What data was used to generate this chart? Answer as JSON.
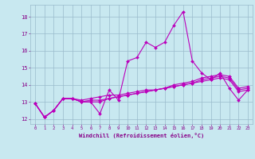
{
  "x": [
    0,
    1,
    2,
    3,
    4,
    5,
    6,
    7,
    8,
    9,
    10,
    11,
    12,
    13,
    14,
    15,
    16,
    17,
    18,
    19,
    20,
    21,
    22,
    23
  ],
  "line1": [
    12.9,
    12.1,
    12.5,
    13.2,
    13.2,
    13.0,
    13.0,
    12.3,
    13.7,
    13.1,
    15.4,
    15.6,
    16.5,
    16.2,
    16.5,
    17.5,
    18.3,
    15.4,
    14.7,
    14.3,
    14.7,
    13.8,
    13.1,
    13.7
  ],
  "line2": [
    12.9,
    12.1,
    12.5,
    13.2,
    13.2,
    13.1,
    13.2,
    13.3,
    13.4,
    13.4,
    13.5,
    13.6,
    13.7,
    13.7,
    13.8,
    13.9,
    14.0,
    14.1,
    14.2,
    14.3,
    14.4,
    14.3,
    13.6,
    13.7
  ],
  "line3": [
    12.9,
    12.1,
    12.5,
    13.2,
    13.2,
    13.0,
    13.1,
    13.1,
    13.2,
    13.3,
    13.4,
    13.5,
    13.6,
    13.7,
    13.8,
    13.9,
    14.0,
    14.1,
    14.3,
    14.4,
    14.5,
    14.4,
    13.7,
    13.8
  ],
  "line4": [
    12.9,
    12.1,
    12.5,
    13.2,
    13.2,
    13.0,
    13.0,
    13.0,
    13.2,
    13.3,
    13.4,
    13.5,
    13.6,
    13.7,
    13.8,
    14.0,
    14.1,
    14.2,
    14.4,
    14.5,
    14.6,
    14.5,
    13.8,
    13.9
  ],
  "color": "#bb00bb",
  "bg_color": "#c8e8f0",
  "grid_color": "#99bbcc",
  "ylabel_vals": [
    12,
    13,
    14,
    15,
    16,
    17,
    18
  ],
  "xlabel": "Windchill (Refroidissement éolien,°C)",
  "xlim": [
    -0.5,
    23.5
  ],
  "ylim": [
    11.7,
    18.7
  ],
  "tick_color": "#880088",
  "label_color": "#880088"
}
